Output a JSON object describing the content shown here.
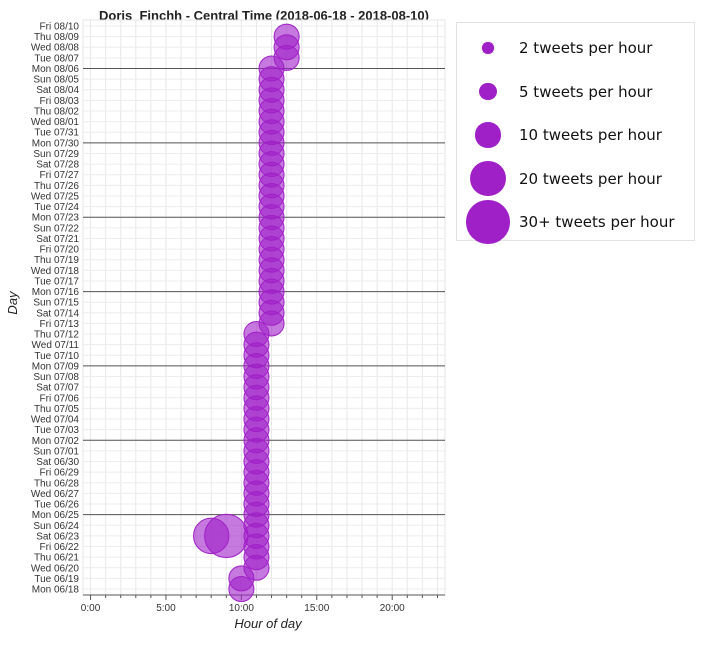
{
  "chart_data": {
    "type": "scatter",
    "title": "Doris_Finchh - Central Time (2018-06-18 - 2018-08-10)",
    "xlabel": "Hour of day",
    "ylabel": "Day",
    "xlim": [
      -0.5,
      23.5
    ],
    "x_ticks": [
      "0:00",
      "5:00",
      "10:00",
      "15:00",
      "20:00"
    ],
    "x_tick_values": [
      0,
      5,
      10,
      15,
      20
    ],
    "week_separators": [
      "Mon 06/25",
      "Mon 07/02",
      "Mon 07/09",
      "Mon 07/16",
      "Mon 07/23",
      "Mon 07/30",
      "Mon 08/06"
    ],
    "days": [
      "Mon 06/18",
      "Tue 06/19",
      "Wed 06/20",
      "Thu 06/21",
      "Fri 06/22",
      "Sat 06/23",
      "Sun 06/24",
      "Mon 06/25",
      "Tue 06/26",
      "Wed 06/27",
      "Thu 06/28",
      "Fri 06/29",
      "Sat 06/30",
      "Sun 07/01",
      "Mon 07/02",
      "Tue 07/03",
      "Wed 07/04",
      "Thu 07/05",
      "Fri 07/06",
      "Sat 07/07",
      "Sun 07/08",
      "Mon 07/09",
      "Tue 07/10",
      "Wed 07/11",
      "Thu 07/12",
      "Fri 07/13",
      "Sat 07/14",
      "Sun 07/15",
      "Mon 07/16",
      "Tue 07/17",
      "Wed 07/18",
      "Thu 07/19",
      "Fri 07/20",
      "Sat 07/21",
      "Sun 07/22",
      "Mon 07/23",
      "Tue 07/24",
      "Wed 07/25",
      "Thu 07/26",
      "Fri 07/27",
      "Sat 07/28",
      "Sun 07/29",
      "Mon 07/30",
      "Tue 07/31",
      "Wed 08/01",
      "Thu 08/02",
      "Fri 08/03",
      "Sat 08/04",
      "Sun 08/05",
      "Mon 08/06",
      "Tue 08/07",
      "Wed 08/08",
      "Thu 08/09",
      "Fri 08/10"
    ],
    "points": [
      {
        "day": "Mon 06/18",
        "hour": 10,
        "tweets": 10
      },
      {
        "day": "Tue 06/19",
        "hour": 10,
        "tweets": 10
      },
      {
        "day": "Wed 06/20",
        "hour": 11,
        "tweets": 10
      },
      {
        "day": "Thu 06/21",
        "hour": 11,
        "tweets": 10
      },
      {
        "day": "Fri 06/22",
        "hour": 11,
        "tweets": 10
      },
      {
        "day": "Sat 06/23",
        "hour": 8,
        "tweets": 20
      },
      {
        "day": "Sat 06/23",
        "hour": 9,
        "tweets": 30
      },
      {
        "day": "Sat 06/23",
        "hour": 11,
        "tweets": 10
      },
      {
        "day": "Sun 06/24",
        "hour": 11,
        "tweets": 10
      },
      {
        "day": "Mon 06/25",
        "hour": 11,
        "tweets": 10
      },
      {
        "day": "Tue 06/26",
        "hour": 11,
        "tweets": 10
      },
      {
        "day": "Wed 06/27",
        "hour": 11,
        "tweets": 10
      },
      {
        "day": "Thu 06/28",
        "hour": 11,
        "tweets": 10
      },
      {
        "day": "Fri 06/29",
        "hour": 11,
        "tweets": 10
      },
      {
        "day": "Sat 06/30",
        "hour": 11,
        "tweets": 10
      },
      {
        "day": "Sun 07/01",
        "hour": 11,
        "tweets": 10
      },
      {
        "day": "Mon 07/02",
        "hour": 11,
        "tweets": 10
      },
      {
        "day": "Tue 07/03",
        "hour": 11,
        "tweets": 10
      },
      {
        "day": "Wed 07/04",
        "hour": 11,
        "tweets": 10
      },
      {
        "day": "Thu 07/05",
        "hour": 11,
        "tweets": 10
      },
      {
        "day": "Fri 07/06",
        "hour": 11,
        "tweets": 10
      },
      {
        "day": "Sat 07/07",
        "hour": 11,
        "tweets": 10
      },
      {
        "day": "Sun 07/08",
        "hour": 11,
        "tweets": 10
      },
      {
        "day": "Mon 07/09",
        "hour": 11,
        "tweets": 10
      },
      {
        "day": "Tue 07/10",
        "hour": 11,
        "tweets": 10
      },
      {
        "day": "Wed 07/11",
        "hour": 11,
        "tweets": 10
      },
      {
        "day": "Thu 07/12",
        "hour": 11,
        "tweets": 10
      },
      {
        "day": "Fri 07/13",
        "hour": 12,
        "tweets": 10
      },
      {
        "day": "Sat 07/14",
        "hour": 12,
        "tweets": 10
      },
      {
        "day": "Sun 07/15",
        "hour": 12,
        "tweets": 10
      },
      {
        "day": "Mon 07/16",
        "hour": 12,
        "tweets": 10
      },
      {
        "day": "Tue 07/17",
        "hour": 12,
        "tweets": 10
      },
      {
        "day": "Wed 07/18",
        "hour": 12,
        "tweets": 10
      },
      {
        "day": "Thu 07/19",
        "hour": 12,
        "tweets": 10
      },
      {
        "day": "Fri 07/20",
        "hour": 12,
        "tweets": 10
      },
      {
        "day": "Sat 07/21",
        "hour": 12,
        "tweets": 10
      },
      {
        "day": "Sun 07/22",
        "hour": 12,
        "tweets": 10
      },
      {
        "day": "Mon 07/23",
        "hour": 12,
        "tweets": 10
      },
      {
        "day": "Tue 07/24",
        "hour": 12,
        "tweets": 10
      },
      {
        "day": "Wed 07/25",
        "hour": 12,
        "tweets": 10
      },
      {
        "day": "Thu 07/26",
        "hour": 12,
        "tweets": 10
      },
      {
        "day": "Fri 07/27",
        "hour": 12,
        "tweets": 10
      },
      {
        "day": "Sat 07/28",
        "hour": 12,
        "tweets": 10
      },
      {
        "day": "Sun 07/29",
        "hour": 12,
        "tweets": 10
      },
      {
        "day": "Mon 07/30",
        "hour": 12,
        "tweets": 10
      },
      {
        "day": "Tue 07/31",
        "hour": 12,
        "tweets": 10
      },
      {
        "day": "Wed 08/01",
        "hour": 12,
        "tweets": 10
      },
      {
        "day": "Thu 08/02",
        "hour": 12,
        "tweets": 10
      },
      {
        "day": "Fri 08/03",
        "hour": 12,
        "tweets": 10
      },
      {
        "day": "Sat 08/04",
        "hour": 12,
        "tweets": 10
      },
      {
        "day": "Sun 08/05",
        "hour": 12,
        "tweets": 10
      },
      {
        "day": "Mon 08/06",
        "hour": 12,
        "tweets": 10
      },
      {
        "day": "Tue 08/07",
        "hour": 13,
        "tweets": 10
      },
      {
        "day": "Wed 08/08",
        "hour": 13,
        "tweets": 10
      },
      {
        "day": "Thu 08/09",
        "hour": 13,
        "tweets": 10
      }
    ],
    "legend": [
      {
        "label": "2 tweets per hour",
        "tweets": 2
      },
      {
        "label": "5 tweets per hour",
        "tweets": 5
      },
      {
        "label": "10 tweets per hour",
        "tweets": 10
      },
      {
        "label": "20 tweets per hour",
        "tweets": 20
      },
      {
        "label": "30+ tweets per hour",
        "tweets": 30
      }
    ],
    "legend_position": "right",
    "grid": true,
    "marker_color": "#a020c8"
  }
}
